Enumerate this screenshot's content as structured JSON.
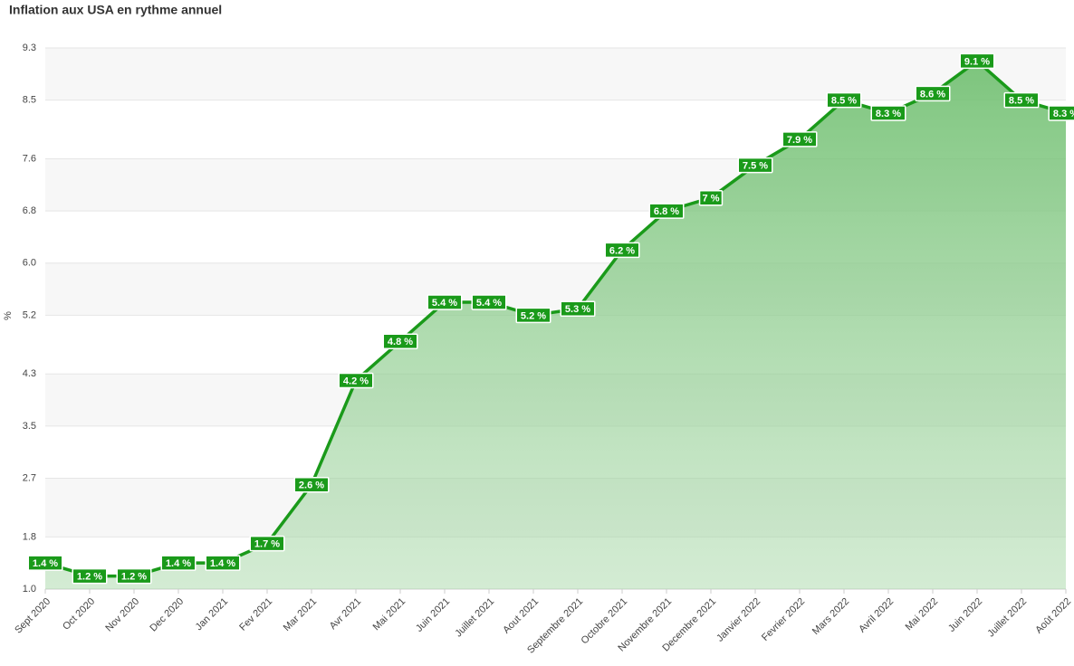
{
  "chart_data": {
    "type": "area",
    "title": "Inflation aux USA en rythme annuel",
    "y_label": "%",
    "categories": [
      "Sept 2020",
      "Oct 2020",
      "Nov 2020",
      "Dec 2020",
      "Jan 2021",
      "Fev 2021",
      "Mar 2021",
      "Avr 2021",
      "Mai 2021",
      "Juin 2021",
      "Juillet 2021",
      "Aout 2021",
      "Septembre 2021",
      "Octobre 2021",
      "Novembre 2021",
      "Decembre 2021",
      "Janvier 2022",
      "Fevrier 2022",
      "Mars 2022",
      "Avril 2022",
      "Mai 2022",
      "Juin 2022",
      "Juillet 2022",
      "Août 2022"
    ],
    "values": [
      1.4,
      1.2,
      1.2,
      1.4,
      1.4,
      1.7,
      2.6,
      4.2,
      4.8,
      5.4,
      5.4,
      5.2,
      5.3,
      6.2,
      6.8,
      7,
      7.5,
      7.9,
      8.5,
      8.3,
      8.6,
      9.1,
      8.5,
      8.3
    ],
    "value_labels": [
      "1.4 %",
      "1.2 %",
      "1.2 %",
      "1.4 %",
      "1.4 %",
      "1.7 %",
      "2.6 %",
      "4.2 %",
      "4.8 %",
      "5.4 %",
      "5.4 %",
      "5.2 %",
      "5.3 %",
      "6.2 %",
      "6.8 %",
      "7 %",
      "7.5 %",
      "7.9 %",
      "8.5 %",
      "8.3 %",
      "8.6 %",
      "9.1 %",
      "8.5 %",
      "8.3 %"
    ],
    "color": "#1a9a1a",
    "ylim": [
      1,
      9.3
    ],
    "yticks": [
      {
        "value": 1,
        "label": "1.0"
      },
      1.8,
      2.7,
      3.5,
      4.3,
      5.2,
      {
        "value": 6,
        "label": "6.0"
      },
      6.8,
      7.6,
      8.5,
      9.3
    ],
    "grid": true
  }
}
